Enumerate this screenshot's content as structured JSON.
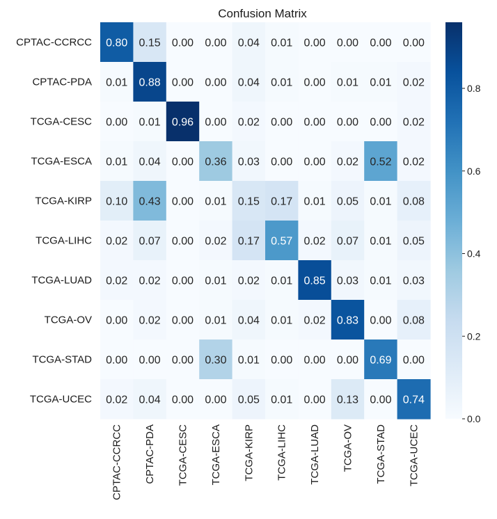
{
  "chart_data": {
    "type": "heatmap",
    "title": "Confusion Matrix",
    "row_labels": [
      "CPTAC-CCRCC",
      "CPTAC-PDA",
      "TCGA-CESC",
      "TCGA-ESCA",
      "TCGA-KIRP",
      "TCGA-LIHC",
      "TCGA-LUAD",
      "TCGA-OV",
      "TCGA-STAD",
      "TCGA-UCEC"
    ],
    "col_labels": [
      "CPTAC-CCRCC",
      "CPTAC-PDA",
      "TCGA-CESC",
      "TCGA-ESCA",
      "TCGA-KIRP",
      "TCGA-LIHC",
      "TCGA-LUAD",
      "TCGA-OV",
      "TCGA-STAD",
      "TCGA-UCEC"
    ],
    "values": [
      [
        0.8,
        0.15,
        0.0,
        0.0,
        0.04,
        0.01,
        0.0,
        0.0,
        0.0,
        0.0
      ],
      [
        0.01,
        0.88,
        0.0,
        0.0,
        0.04,
        0.01,
        0.0,
        0.01,
        0.01,
        0.02
      ],
      [
        0.0,
        0.01,
        0.96,
        0.0,
        0.02,
        0.0,
        0.0,
        0.0,
        0.0,
        0.02
      ],
      [
        0.01,
        0.04,
        0.0,
        0.36,
        0.03,
        0.0,
        0.0,
        0.02,
        0.52,
        0.02
      ],
      [
        0.1,
        0.43,
        0.0,
        0.01,
        0.15,
        0.17,
        0.01,
        0.05,
        0.01,
        0.08
      ],
      [
        0.02,
        0.07,
        0.0,
        0.02,
        0.17,
        0.57,
        0.02,
        0.07,
        0.01,
        0.05
      ],
      [
        0.02,
        0.02,
        0.0,
        0.01,
        0.02,
        0.01,
        0.85,
        0.03,
        0.01,
        0.03
      ],
      [
        0.0,
        0.02,
        0.0,
        0.01,
        0.04,
        0.01,
        0.02,
        0.83,
        0.0,
        0.08
      ],
      [
        0.0,
        0.0,
        0.0,
        0.3,
        0.01,
        0.0,
        0.0,
        0.0,
        0.69,
        0.0
      ],
      [
        0.02,
        0.04,
        0.0,
        0.0,
        0.05,
        0.01,
        0.0,
        0.13,
        0.0,
        0.74
      ]
    ],
    "colorbar": {
      "range": [
        0.0,
        0.96
      ],
      "ticks": [
        0.0,
        0.2,
        0.4,
        0.6,
        0.8
      ],
      "tick_labels": [
        "0.0",
        "0.2",
        "0.4",
        "0.6",
        "0.8"
      ]
    },
    "colormap": "Blues",
    "colors": {
      "low": "#f7fbff",
      "high": "#08306b",
      "text_dark": "#262626",
      "text_light": "#ffffff"
    }
  }
}
